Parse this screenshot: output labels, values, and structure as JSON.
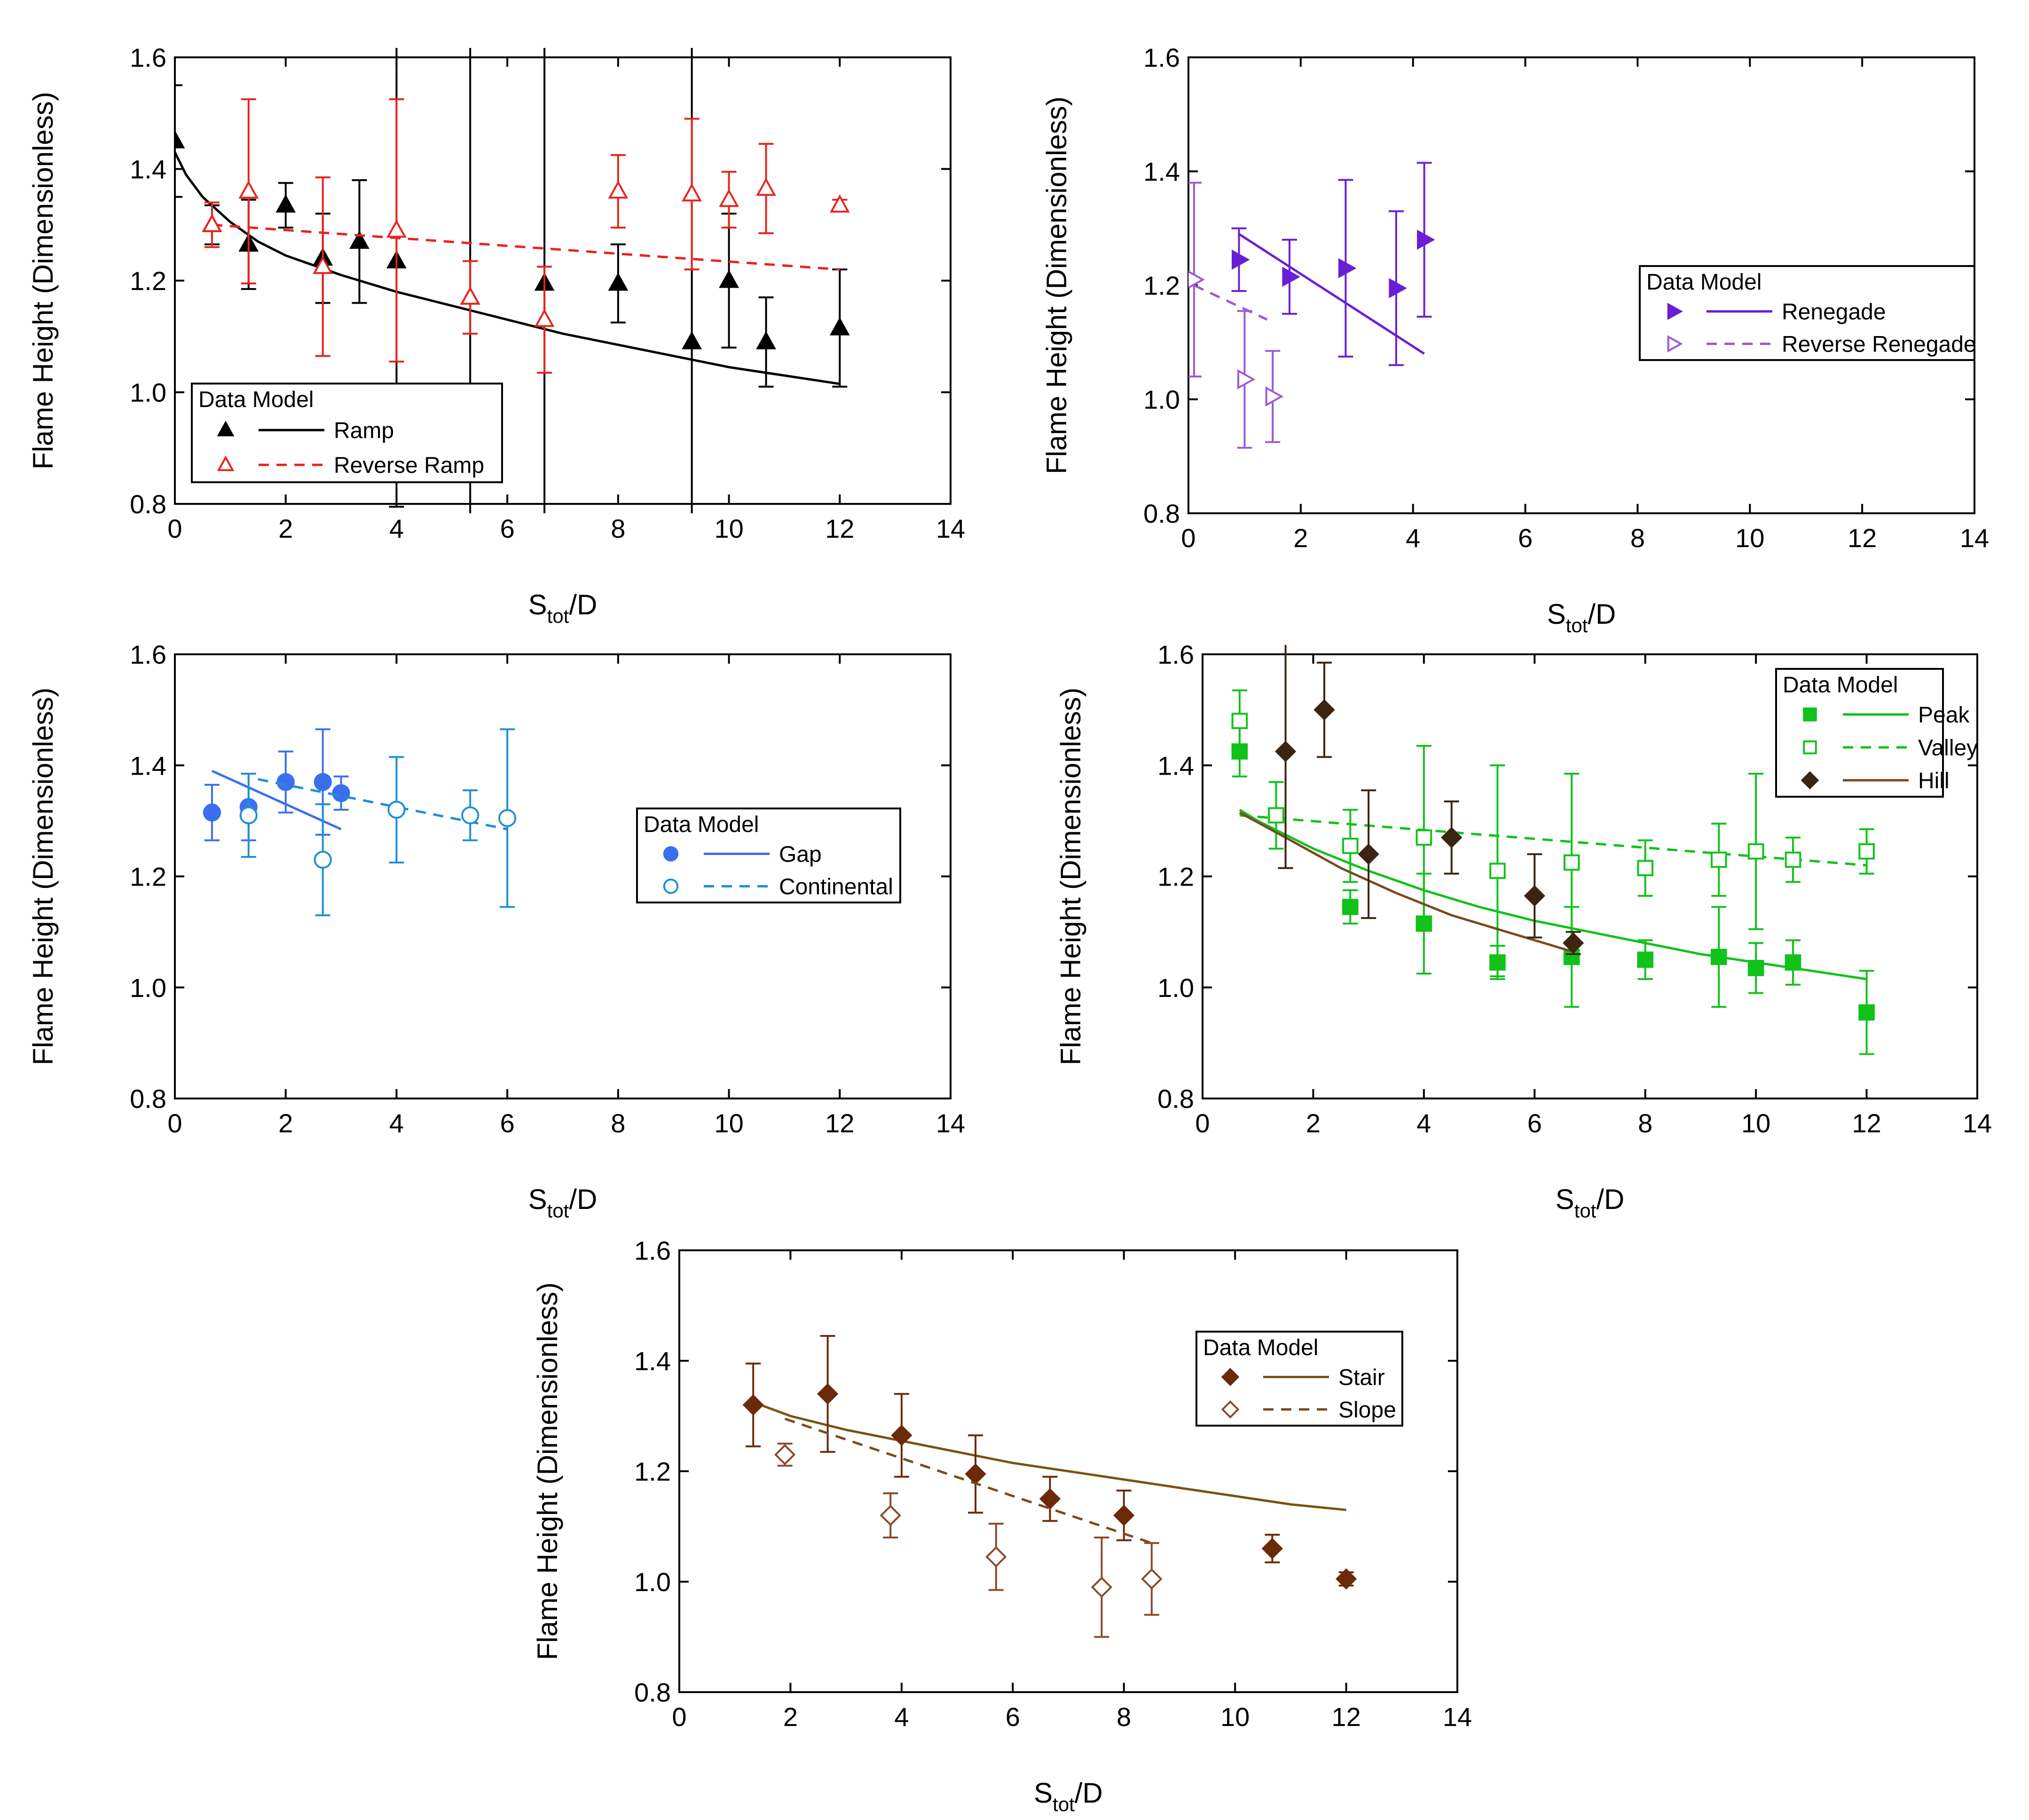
{
  "chart_data": [
    {
      "type": "scatter",
      "panel": "top-left",
      "xlabel": "S",
      "xlabel_sub": "tot",
      "xlabel_suffix": "/D",
      "ylabel": "Flame Height (Dimensionless)",
      "xlim": [
        0,
        14
      ],
      "ylim": [
        0.8,
        1.6
      ],
      "xticks": [
        "0",
        "2",
        "4",
        "6",
        "8",
        "10",
        "12",
        "14"
      ],
      "yticks": [
        "0.8",
        "1.0",
        "1.2",
        "1.4",
        "1.6"
      ],
      "legend": {
        "title": "Data Model",
        "position": "bottom-left"
      },
      "series": [
        {
          "name": "Ramp",
          "color": "#000000",
          "marker": "triangle",
          "filled": true,
          "line": "solid",
          "x": [
            0,
            0.67,
            1.33,
            2,
            2.67,
            3.33,
            4,
            5.33,
            6.67,
            8,
            9.33,
            10,
            10.67,
            12
          ],
          "y": [
            1.45,
            1.3,
            1.265,
            1.335,
            1.24,
            1.27,
            1.235,
            1.17,
            1.195,
            1.195,
            1.09,
            1.2,
            1.09,
            1.115
          ],
          "err": [
            0.1,
            0.035,
            0.08,
            0.04,
            0.08,
            0.11,
            0.44,
            1.5,
            1.5,
            0.07,
            1.5,
            0.12,
            0.08,
            0.105
          ],
          "fit_x": [
            0,
            0.2,
            0.5,
            1,
            1.5,
            2,
            3,
            4,
            5,
            6,
            7,
            8,
            9,
            10,
            11,
            12
          ],
          "fit_y": [
            1.43,
            1.39,
            1.35,
            1.305,
            1.27,
            1.245,
            1.21,
            1.18,
            1.155,
            1.13,
            1.105,
            1.085,
            1.065,
            1.045,
            1.03,
            1.015
          ]
        },
        {
          "name": "Reverse Ramp",
          "color": "#e8231c",
          "marker": "triangle",
          "filled": false,
          "line": "dashed",
          "x": [
            0.67,
            1.33,
            2.67,
            4,
            5.33,
            6.67,
            8,
            9.33,
            10,
            10.67,
            12
          ],
          "y": [
            1.3,
            1.36,
            1.225,
            1.29,
            1.17,
            1.13,
            1.36,
            1.355,
            1.345,
            1.365,
            1.335
          ],
          "err": [
            0.04,
            0.165,
            0.16,
            0.235,
            0.065,
            0.095,
            0.065,
            0.135,
            0.05,
            0.08,
            0.01
          ],
          "fit_x": [
            0.67,
            12
          ],
          "fit_y": [
            1.3,
            1.22
          ]
        }
      ]
    },
    {
      "type": "scatter",
      "panel": "top-right",
      "xlabel": "S",
      "xlabel_sub": "tot",
      "xlabel_suffix": "/D",
      "ylabel": "Flame Height (Dimensionless)",
      "xlim": [
        0,
        14
      ],
      "ylim": [
        0.8,
        1.6
      ],
      "xticks": [
        "0",
        "2",
        "4",
        "6",
        "8",
        "10",
        "12",
        "14"
      ],
      "yticks": [
        "0.8",
        "1.0",
        "1.2",
        "1.4",
        "1.6"
      ],
      "legend": {
        "title": "Data Model",
        "position": "center-right"
      },
      "series": [
        {
          "name": "Renegade",
          "color": "#6a1fd6",
          "marker": "triangle-right",
          "filled": true,
          "line": "solid",
          "x": [
            0.9,
            1.8,
            2.8,
            3.7,
            4.2
          ],
          "y": [
            1.245,
            1.215,
            1.23,
            1.195,
            1.28
          ],
          "err": [
            0.055,
            0.065,
            0.155,
            0.135,
            0.135
          ],
          "fit_x": [
            0.9,
            4.2
          ],
          "fit_y": [
            1.29,
            1.08
          ]
        },
        {
          "name": "Reverse Renegade",
          "color": "#9b59d6",
          "marker": "triangle-right",
          "filled": false,
          "line": "dashed",
          "x": [
            0.1,
            1.0,
            1.5
          ],
          "y": [
            1.21,
            1.035,
            1.005
          ],
          "err": [
            0.17,
            0.12,
            0.08
          ],
          "fit_x": [
            0.1,
            1.4
          ],
          "fit_y": [
            1.2,
            1.14
          ]
        }
      ]
    },
    {
      "type": "scatter",
      "panel": "middle-left",
      "xlabel": "S",
      "xlabel_sub": "tot",
      "xlabel_suffix": "/D",
      "ylabel": "Flame Height (Dimensionless)",
      "xlim": [
        0,
        14
      ],
      "ylim": [
        0.8,
        1.6
      ],
      "xticks": [
        "0",
        "2",
        "4",
        "6",
        "8",
        "10",
        "12",
        "14"
      ],
      "yticks": [
        "0.8",
        "1.0",
        "1.2",
        "1.4",
        "1.6"
      ],
      "legend": {
        "title": "Data Model",
        "position": "center-right"
      },
      "series": [
        {
          "name": "Gap",
          "color": "#3b6ff0",
          "marker": "circle",
          "filled": true,
          "line": "solid",
          "x": [
            0.67,
            1.33,
            2,
            2.67,
            3
          ],
          "y": [
            1.315,
            1.325,
            1.37,
            1.37,
            1.35
          ],
          "err": [
            0.05,
            0.06,
            0.055,
            0.095,
            0.03
          ],
          "fit_x": [
            0.67,
            3
          ],
          "fit_y": [
            1.39,
            1.285
          ]
        },
        {
          "name": "Continental",
          "color": "#1f8fd6",
          "marker": "circle",
          "filled": false,
          "line": "dashed",
          "x": [
            1.33,
            2.67,
            4,
            5.33,
            6
          ],
          "y": [
            1.31,
            1.23,
            1.32,
            1.31,
            1.305
          ],
          "err": [
            0.075,
            0.1,
            0.095,
            0.045,
            0.16
          ],
          "fit_x": [
            1.5,
            6
          ],
          "fit_y": [
            1.375,
            1.285
          ]
        }
      ]
    },
    {
      "type": "scatter",
      "panel": "middle-right",
      "xlabel": "S",
      "xlabel_sub": "tot",
      "xlabel_suffix": "/D",
      "ylabel": "Flame Height (Dimensionless)",
      "xlim": [
        0,
        14
      ],
      "ylim": [
        0.8,
        1.6
      ],
      "xticks": [
        "0",
        "2",
        "4",
        "6",
        "8",
        "10",
        "12",
        "14"
      ],
      "yticks": [
        "0.8",
        "1.0",
        "1.2",
        "1.4",
        "1.6"
      ],
      "legend": {
        "title": "Data Model",
        "position": "top-right"
      },
      "series": [
        {
          "name": "Peak",
          "color": "#11c21a",
          "marker": "square",
          "filled": true,
          "line": "solid",
          "x": [
            0.67,
            2.67,
            4,
            5.33,
            6.67,
            8,
            9.33,
            10,
            10.67,
            12
          ],
          "y": [
            1.425,
            1.145,
            1.115,
            1.045,
            1.055,
            1.05,
            1.055,
            1.035,
            1.045,
            0.955
          ],
          "err": [
            0.045,
            0.03,
            0.09,
            0.03,
            0.09,
            0.035,
            0.09,
            0.045,
            0.04,
            0.075
          ],
          "fit_x": [
            0.67,
            1,
            2,
            3,
            4,
            5,
            6,
            7,
            8,
            9,
            10,
            11,
            12
          ],
          "fit_y": [
            1.32,
            1.3,
            1.25,
            1.21,
            1.175,
            1.145,
            1.12,
            1.1,
            1.08,
            1.06,
            1.045,
            1.03,
            1.015
          ]
        },
        {
          "name": "Valley",
          "color": "#11c21a",
          "marker": "square",
          "filled": false,
          "line": "dashed",
          "x": [
            0.67,
            1.33,
            2.67,
            4,
            5.33,
            6.67,
            8,
            9.33,
            10,
            10.67,
            12
          ],
          "y": [
            1.48,
            1.31,
            1.255,
            1.27,
            1.21,
            1.225,
            1.215,
            1.23,
            1.245,
            1.23,
            1.245
          ],
          "err": [
            0.055,
            0.06,
            0.065,
            0.165,
            0.19,
            0.16,
            0.05,
            0.065,
            0.14,
            0.04,
            0.04
          ],
          "fit_x": [
            0.67,
            12
          ],
          "fit_y": [
            1.31,
            1.22
          ]
        },
        {
          "name": "Hill",
          "color": "#3b2410",
          "marker": "diamond",
          "filled": true,
          "line": "solid",
          "x": [
            1.5,
            2.2,
            3,
            4.5,
            6,
            6.7
          ],
          "y": [
            1.425,
            1.5,
            1.24,
            1.27,
            1.165,
            1.08
          ],
          "err": [
            0.21,
            0.085,
            0.115,
            0.065,
            0.075,
            0.02
          ],
          "fit_x": [
            0.67,
            1.5,
            2.5,
            3.5,
            4.5,
            5.5,
            6.67
          ],
          "fit_y": [
            1.315,
            1.27,
            1.215,
            1.17,
            1.13,
            1.1,
            1.065
          ],
          "fit_color": "#7a4a20"
        }
      ]
    },
    {
      "type": "scatter",
      "panel": "bottom-center",
      "xlabel": "S",
      "xlabel_sub": "tot",
      "xlabel_suffix": "/D",
      "ylabel": "Flame Height (Dimensionless)",
      "xlim": [
        0,
        14
      ],
      "ylim": [
        0.8,
        1.6
      ],
      "xticks": [
        "0",
        "2",
        "4",
        "6",
        "8",
        "10",
        "12",
        "14"
      ],
      "yticks": [
        "0.8",
        "1.0",
        "1.2",
        "1.4",
        "1.6"
      ],
      "legend": {
        "title": "Data Model",
        "position": "top-right"
      },
      "series": [
        {
          "name": "Stair",
          "color": "#6b2a0a",
          "marker": "diamond",
          "filled": true,
          "line": "solid",
          "x": [
            1.33,
            2.67,
            4,
            5.33,
            6.67,
            8,
            10.67,
            12
          ],
          "y": [
            1.32,
            1.34,
            1.265,
            1.195,
            1.15,
            1.12,
            1.06,
            1.005
          ],
          "err": [
            0.075,
            0.105,
            0.075,
            0.07,
            0.04,
            0.045,
            0.025,
            0.012
          ],
          "fit_x": [
            1.33,
            2,
            3,
            4,
            5,
            6,
            7,
            8,
            9,
            10,
            11,
            12
          ],
          "fit_y": [
            1.325,
            1.3,
            1.275,
            1.255,
            1.235,
            1.215,
            1.2,
            1.185,
            1.17,
            1.155,
            1.14,
            1.13
          ],
          "fit_color": "#7a5212"
        },
        {
          "name": "Slope",
          "color": "#8b4a2a",
          "marker": "diamond",
          "filled": false,
          "line": "dashed",
          "x": [
            1.9,
            3.8,
            5.7,
            7.6,
            8.5
          ],
          "y": [
            1.23,
            1.12,
            1.045,
            0.99,
            1.005
          ],
          "err": [
            0.02,
            0.04,
            0.06,
            0.09,
            0.065
          ],
          "fit_x": [
            1.9,
            8.5
          ],
          "fit_y": [
            1.295,
            1.07
          ],
          "fit_color": "#7a4a20"
        }
      ]
    }
  ]
}
